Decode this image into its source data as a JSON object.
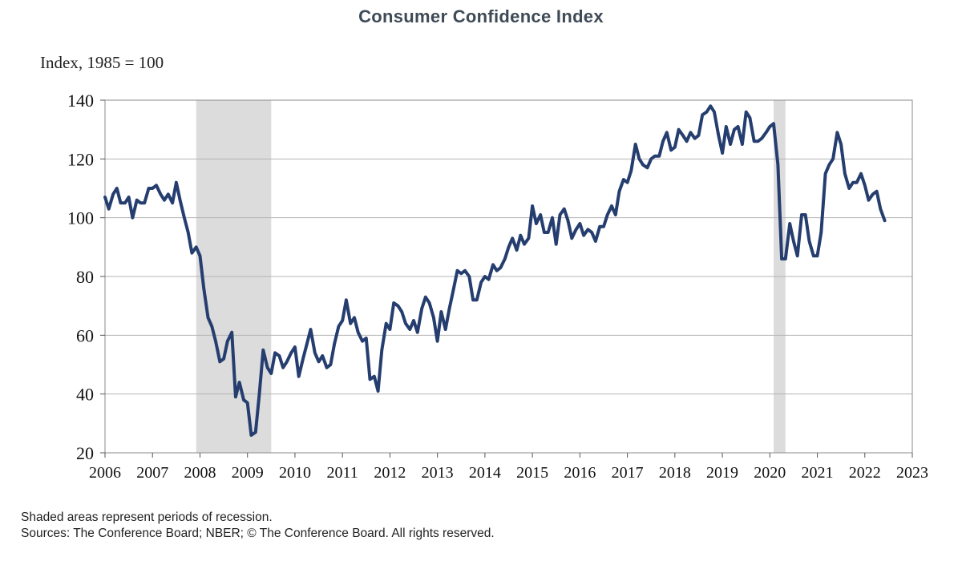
{
  "title": "Consumer Confidence Index",
  "footer": {
    "note": "Shaded areas represent periods of recession.",
    "sources": "Sources: The Conference Board; NBER; © The Conference Board. All rights reserved."
  },
  "colors": {
    "line": "#253e6f",
    "recession": "#dcdcdc",
    "grid": "#b4b4b4",
    "title": "#3e4a56"
  },
  "chart_data": {
    "type": "line",
    "title": "Consumer Confidence Index",
    "ylabel": "Index, 1985 = 100",
    "xlabel": "",
    "ylim": [
      20,
      140
    ],
    "xlim": [
      2006,
      2023
    ],
    "y_ticks": [
      20,
      40,
      60,
      80,
      100,
      120,
      140
    ],
    "x_ticks": [
      "2006",
      "2007",
      "2008",
      "2009",
      "2010",
      "2011",
      "2012",
      "2013",
      "2014",
      "2015",
      "2016",
      "2017",
      "2018",
      "2019",
      "2020",
      "2021",
      "2022",
      "2023"
    ],
    "grid": true,
    "recessions": [
      [
        2007.92,
        2009.5
      ],
      [
        2020.08,
        2020.33
      ]
    ],
    "series": [
      {
        "values": [
          [
            2006.0,
            107
          ],
          [
            2006.08,
            103
          ],
          [
            2006.17,
            108
          ],
          [
            2006.25,
            110
          ],
          [
            2006.33,
            105
          ],
          [
            2006.42,
            105
          ],
          [
            2006.5,
            107
          ],
          [
            2006.58,
            100
          ],
          [
            2006.67,
            106
          ],
          [
            2006.75,
            105
          ],
          [
            2006.83,
            105
          ],
          [
            2006.92,
            110
          ],
          [
            2007.0,
            110
          ],
          [
            2007.08,
            111
          ],
          [
            2007.17,
            108
          ],
          [
            2007.25,
            106
          ],
          [
            2007.33,
            108
          ],
          [
            2007.42,
            105
          ],
          [
            2007.5,
            112
          ],
          [
            2007.58,
            106
          ],
          [
            2007.67,
            100
          ],
          [
            2007.75,
            95
          ],
          [
            2007.83,
            88
          ],
          [
            2007.92,
            90
          ],
          [
            2008.0,
            87
          ],
          [
            2008.08,
            76
          ],
          [
            2008.17,
            66
          ],
          [
            2008.25,
            63
          ],
          [
            2008.33,
            58
          ],
          [
            2008.42,
            51
          ],
          [
            2008.5,
            52
          ],
          [
            2008.58,
            58
          ],
          [
            2008.67,
            61
          ],
          [
            2008.75,
            39
          ],
          [
            2008.83,
            44
          ],
          [
            2008.92,
            38
          ],
          [
            2009.0,
            37
          ],
          [
            2009.08,
            26
          ],
          [
            2009.17,
            27
          ],
          [
            2009.25,
            40
          ],
          [
            2009.33,
            55
          ],
          [
            2009.42,
            49
          ],
          [
            2009.5,
            47
          ],
          [
            2009.58,
            54
          ],
          [
            2009.67,
            53
          ],
          [
            2009.75,
            49
          ],
          [
            2009.83,
            51
          ],
          [
            2009.92,
            54
          ],
          [
            2010.0,
            56
          ],
          [
            2010.08,
            46
          ],
          [
            2010.17,
            52
          ],
          [
            2010.25,
            57
          ],
          [
            2010.33,
            62
          ],
          [
            2010.42,
            54
          ],
          [
            2010.5,
            51
          ],
          [
            2010.58,
            53
          ],
          [
            2010.67,
            49
          ],
          [
            2010.75,
            50
          ],
          [
            2010.83,
            57
          ],
          [
            2010.92,
            63
          ],
          [
            2011.0,
            65
          ],
          [
            2011.08,
            72
          ],
          [
            2011.17,
            64
          ],
          [
            2011.25,
            66
          ],
          [
            2011.33,
            61
          ],
          [
            2011.42,
            58
          ],
          [
            2011.5,
            59
          ],
          [
            2011.58,
            45
          ],
          [
            2011.67,
            46
          ],
          [
            2011.75,
            41
          ],
          [
            2011.83,
            55
          ],
          [
            2011.92,
            64
          ],
          [
            2012.0,
            62
          ],
          [
            2012.08,
            71
          ],
          [
            2012.17,
            70
          ],
          [
            2012.25,
            68
          ],
          [
            2012.33,
            64
          ],
          [
            2012.42,
            62
          ],
          [
            2012.5,
            65
          ],
          [
            2012.58,
            61
          ],
          [
            2012.67,
            69
          ],
          [
            2012.75,
            73
          ],
          [
            2012.83,
            71
          ],
          [
            2012.92,
            66
          ],
          [
            2013.0,
            58
          ],
          [
            2013.08,
            68
          ],
          [
            2013.17,
            62
          ],
          [
            2013.25,
            69
          ],
          [
            2013.33,
            75
          ],
          [
            2013.42,
            82
          ],
          [
            2013.5,
            81
          ],
          [
            2013.58,
            82
          ],
          [
            2013.67,
            80
          ],
          [
            2013.75,
            72
          ],
          [
            2013.83,
            72
          ],
          [
            2013.92,
            78
          ],
          [
            2014.0,
            80
          ],
          [
            2014.08,
            79
          ],
          [
            2014.17,
            84
          ],
          [
            2014.25,
            82
          ],
          [
            2014.33,
            83
          ],
          [
            2014.42,
            86
          ],
          [
            2014.5,
            90
          ],
          [
            2014.58,
            93
          ],
          [
            2014.67,
            89
          ],
          [
            2014.75,
            94
          ],
          [
            2014.83,
            91
          ],
          [
            2014.92,
            93
          ],
          [
            2015.0,
            104
          ],
          [
            2015.08,
            98
          ],
          [
            2015.17,
            101
          ],
          [
            2015.25,
            95
          ],
          [
            2015.33,
            95
          ],
          [
            2015.42,
            100
          ],
          [
            2015.5,
            91
          ],
          [
            2015.58,
            101
          ],
          [
            2015.67,
            103
          ],
          [
            2015.75,
            99
          ],
          [
            2015.83,
            93
          ],
          [
            2015.92,
            96
          ],
          [
            2016.0,
            98
          ],
          [
            2016.08,
            94
          ],
          [
            2016.17,
            96
          ],
          [
            2016.25,
            95
          ],
          [
            2016.33,
            92
          ],
          [
            2016.42,
            97
          ],
          [
            2016.5,
            97
          ],
          [
            2016.58,
            101
          ],
          [
            2016.67,
            104
          ],
          [
            2016.75,
            101
          ],
          [
            2016.83,
            109
          ],
          [
            2016.92,
            113
          ],
          [
            2017.0,
            112
          ],
          [
            2017.08,
            116
          ],
          [
            2017.17,
            125
          ],
          [
            2017.25,
            120
          ],
          [
            2017.33,
            118
          ],
          [
            2017.42,
            117
          ],
          [
            2017.5,
            120
          ],
          [
            2017.58,
            121
          ],
          [
            2017.67,
            121
          ],
          [
            2017.75,
            126
          ],
          [
            2017.83,
            129
          ],
          [
            2017.92,
            123
          ],
          [
            2018.0,
            124
          ],
          [
            2018.08,
            130
          ],
          [
            2018.17,
            128
          ],
          [
            2018.25,
            126
          ],
          [
            2018.33,
            129
          ],
          [
            2018.42,
            127
          ],
          [
            2018.5,
            128
          ],
          [
            2018.58,
            135
          ],
          [
            2018.67,
            136
          ],
          [
            2018.75,
            138
          ],
          [
            2018.83,
            136
          ],
          [
            2018.92,
            128
          ],
          [
            2019.0,
            122
          ],
          [
            2019.08,
            131
          ],
          [
            2019.17,
            125
          ],
          [
            2019.25,
            130
          ],
          [
            2019.33,
            131
          ],
          [
            2019.42,
            125
          ],
          [
            2019.5,
            136
          ],
          [
            2019.58,
            134
          ],
          [
            2019.67,
            126
          ],
          [
            2019.75,
            126
          ],
          [
            2019.83,
            127
          ],
          [
            2019.92,
            129
          ],
          [
            2020.0,
            131
          ],
          [
            2020.08,
            132
          ],
          [
            2020.17,
            118
          ],
          [
            2020.25,
            86
          ],
          [
            2020.33,
            86
          ],
          [
            2020.42,
            98
          ],
          [
            2020.5,
            92
          ],
          [
            2020.58,
            87
          ],
          [
            2020.67,
            101
          ],
          [
            2020.75,
            101
          ],
          [
            2020.83,
            92
          ],
          [
            2020.92,
            87
          ],
          [
            2021.0,
            87
          ],
          [
            2021.08,
            95
          ],
          [
            2021.17,
            115
          ],
          [
            2021.25,
            118
          ],
          [
            2021.33,
            120
          ],
          [
            2021.42,
            129
          ],
          [
            2021.5,
            125
          ],
          [
            2021.58,
            115
          ],
          [
            2021.67,
            110
          ],
          [
            2021.75,
            112
          ],
          [
            2021.83,
            112
          ],
          [
            2021.92,
            115
          ],
          [
            2022.0,
            111
          ],
          [
            2022.08,
            106
          ],
          [
            2022.17,
            108
          ],
          [
            2022.25,
            109
          ],
          [
            2022.33,
            103
          ],
          [
            2022.42,
            99
          ]
        ]
      }
    ]
  }
}
